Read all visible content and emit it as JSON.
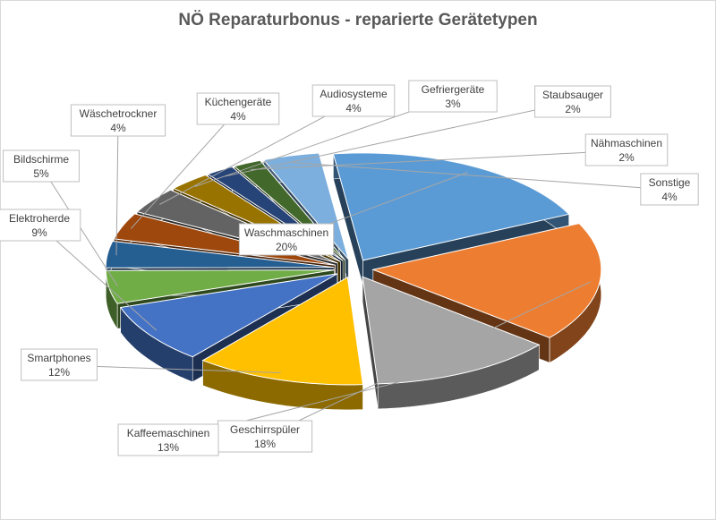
{
  "chart_data": {
    "type": "pie",
    "style": "3d-exploded",
    "title": "NÖ Reparaturbonus - reparierte Gerätetypen",
    "legend": "none",
    "data_labels": "category-and-percent-callouts",
    "slices": [
      {
        "name": "Waschmaschinen",
        "value": 20,
        "color": "#5B9BD5"
      },
      {
        "name": "Geschirrspüler",
        "value": 18,
        "color": "#ED7D31"
      },
      {
        "name": "Kaffeemaschinen",
        "value": 13,
        "color": "#A5A5A5"
      },
      {
        "name": "Smartphones",
        "value": 12,
        "color": "#FFC000"
      },
      {
        "name": "Elektroherde",
        "value": 9,
        "color": "#4472C4"
      },
      {
        "name": "Bildschirme",
        "value": 5,
        "color": "#70AD47"
      },
      {
        "name": "Wäschetrockner",
        "value": 4,
        "color": "#255E91"
      },
      {
        "name": "Küchengeräte",
        "value": 4,
        "color": "#9E480E"
      },
      {
        "name": "Audiosysteme",
        "value": 4,
        "color": "#636363"
      },
      {
        "name": "Gefriergeräte",
        "value": 3,
        "color": "#997300"
      },
      {
        "name": "Staubsauger",
        "value": 2,
        "color": "#264478"
      },
      {
        "name": "Nähmaschinen",
        "value": 2,
        "color": "#43682B"
      },
      {
        "name": "Sonstige",
        "value": 4,
        "color": "#7CAFDD"
      }
    ]
  }
}
